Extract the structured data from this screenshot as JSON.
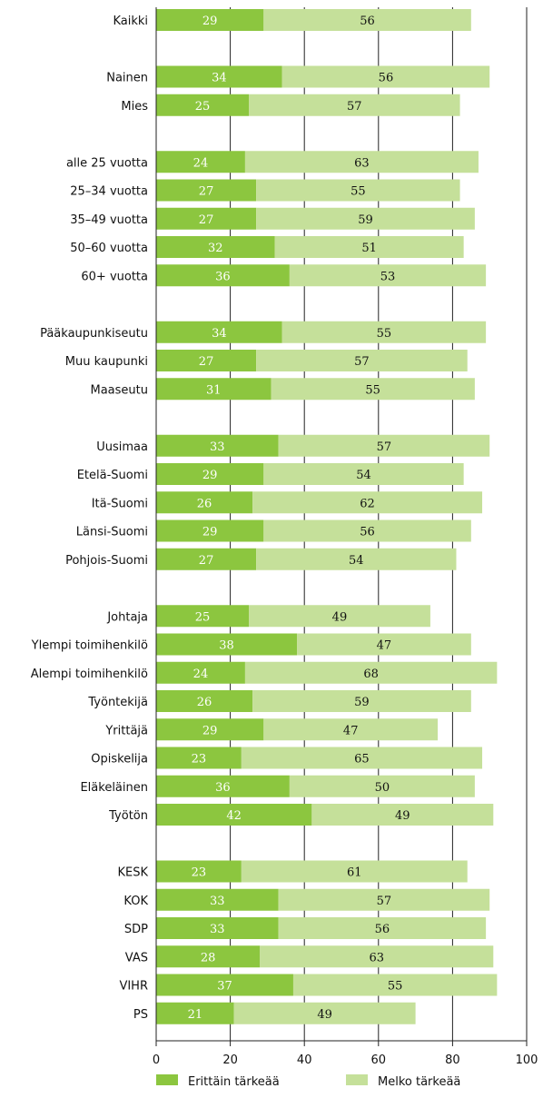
{
  "chart_data": {
    "type": "bar",
    "orientation": "horizontal",
    "stacked": true,
    "title": "",
    "xlabel": "",
    "ylabel": "",
    "xlim": [
      0,
      100
    ],
    "xticks": [
      0,
      20,
      40,
      60,
      80,
      100
    ],
    "grid": true,
    "legend_position": "bottom",
    "colors": {
      "Erittäin tärkeää": "#8cc63f",
      "Melko tärkeää": "#c5e09a"
    },
    "categories": [
      "Kaikki",
      "Nainen",
      "Mies",
      "alle 25 vuotta",
      "25–34 vuotta",
      "35–49 vuotta",
      "50–60 vuotta",
      "60+ vuotta",
      "Pääkaupunkiseutu",
      "Muu kaupunki",
      "Maaseutu",
      "Uusimaa",
      "Etelä-Suomi",
      "Itä-Suomi",
      "Länsi-Suomi",
      "Pohjois-Suomi",
      "Johtaja",
      "Ylempi toimihenkilö",
      "Alempi toimihenkilö",
      "Työntekijä",
      "Yrittäjä",
      "Opiskelija",
      "Eläkeläinen",
      "Työtön",
      "KESK",
      "KOK",
      "SDP",
      "VAS",
      "VIHR",
      "PS"
    ],
    "groups": [
      1,
      2,
      5,
      3,
      5,
      8,
      6
    ],
    "series": [
      {
        "name": "Erittäin tärkeää",
        "values": [
          29,
          34,
          25,
          24,
          27,
          27,
          32,
          36,
          34,
          27,
          31,
          33,
          29,
          26,
          29,
          27,
          25,
          38,
          24,
          26,
          29,
          23,
          36,
          42,
          23,
          33,
          33,
          28,
          37,
          21
        ]
      },
      {
        "name": "Melko tärkeää",
        "values": [
          56,
          56,
          57,
          63,
          55,
          59,
          51,
          53,
          55,
          57,
          55,
          57,
          54,
          62,
          56,
          54,
          49,
          47,
          68,
          59,
          47,
          65,
          50,
          49,
          61,
          57,
          56,
          63,
          55,
          49
        ]
      }
    ]
  }
}
